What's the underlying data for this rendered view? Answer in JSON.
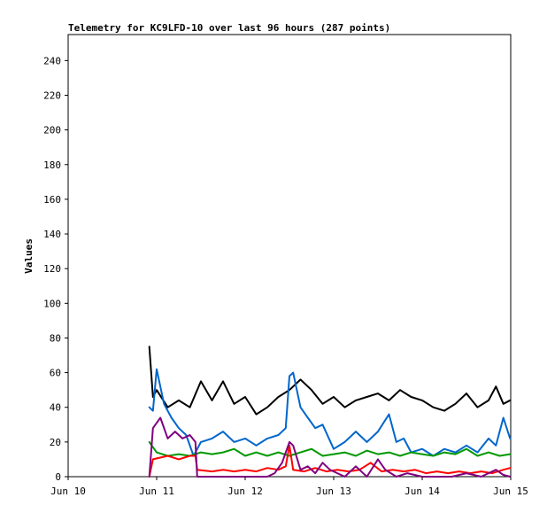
{
  "chart_data": {
    "type": "line",
    "title": "Telemetry for KC9LFD-10 over last 96 hours (287 points)",
    "xlabel": "",
    "ylabel": "Values",
    "ylim": [
      0,
      255
    ],
    "yticks": [
      0,
      20,
      40,
      60,
      80,
      100,
      120,
      140,
      160,
      180,
      200,
      220,
      240
    ],
    "x_range": [
      "2023-06-10T00:00",
      "2023-06-15T00:00"
    ],
    "xticks": [
      {
        "t": "2023-06-10T00:00",
        "label": "Jun 10"
      },
      {
        "t": "2023-06-11T00:00",
        "label": "Jun 11"
      },
      {
        "t": "2023-06-12T00:00",
        "label": "Jun 12"
      },
      {
        "t": "2023-06-13T00:00",
        "label": "Jun 13"
      },
      {
        "t": "2023-06-14T00:00",
        "label": "Jun 14"
      },
      {
        "t": "2023-06-15T00:00",
        "label": "Jun 15"
      }
    ],
    "grid": false,
    "legend": "none",
    "series": [
      {
        "color": "#000000",
        "points": [
          [
            "2023-06-10T22:00",
            75
          ],
          [
            "2023-06-10T23:00",
            46
          ],
          [
            "2023-06-11T00:00",
            50
          ],
          [
            "2023-06-11T03:00",
            40
          ],
          [
            "2023-06-11T06:00",
            44
          ],
          [
            "2023-06-11T09:00",
            40
          ],
          [
            "2023-06-11T12:00",
            55
          ],
          [
            "2023-06-11T15:00",
            44
          ],
          [
            "2023-06-11T18:00",
            55
          ],
          [
            "2023-06-11T21:00",
            42
          ],
          [
            "2023-06-12T00:00",
            46
          ],
          [
            "2023-06-12T03:00",
            36
          ],
          [
            "2023-06-12T06:00",
            40
          ],
          [
            "2023-06-12T09:00",
            46
          ],
          [
            "2023-06-12T12:00",
            50
          ],
          [
            "2023-06-12T15:00",
            56
          ],
          [
            "2023-06-12T18:00",
            50
          ],
          [
            "2023-06-12T21:00",
            42
          ],
          [
            "2023-06-13T00:00",
            46
          ],
          [
            "2023-06-13T03:00",
            40
          ],
          [
            "2023-06-13T06:00",
            44
          ],
          [
            "2023-06-13T09:00",
            46
          ],
          [
            "2023-06-13T12:00",
            48
          ],
          [
            "2023-06-13T15:00",
            44
          ],
          [
            "2023-06-13T18:00",
            50
          ],
          [
            "2023-06-13T21:00",
            46
          ],
          [
            "2023-06-14T00:00",
            44
          ],
          [
            "2023-06-14T03:00",
            40
          ],
          [
            "2023-06-14T06:00",
            38
          ],
          [
            "2023-06-14T09:00",
            42
          ],
          [
            "2023-06-14T12:00",
            48
          ],
          [
            "2023-06-14T15:00",
            40
          ],
          [
            "2023-06-14T18:00",
            44
          ],
          [
            "2023-06-14T20:00",
            52
          ],
          [
            "2023-06-14T22:00",
            42
          ],
          [
            "2023-06-14T23:50",
            44
          ]
        ]
      },
      {
        "color": "#0066cc",
        "points": [
          [
            "2023-06-10T22:00",
            40
          ],
          [
            "2023-06-10T23:00",
            38
          ],
          [
            "2023-06-11T00:00",
            62
          ],
          [
            "2023-06-11T02:00",
            42
          ],
          [
            "2023-06-11T04:00",
            34
          ],
          [
            "2023-06-11T06:00",
            28
          ],
          [
            "2023-06-11T08:00",
            24
          ],
          [
            "2023-06-11T10:00",
            12
          ],
          [
            "2023-06-11T12:00",
            20
          ],
          [
            "2023-06-11T15:00",
            22
          ],
          [
            "2023-06-11T18:00",
            26
          ],
          [
            "2023-06-11T21:00",
            20
          ],
          [
            "2023-06-12T00:00",
            22
          ],
          [
            "2023-06-12T03:00",
            18
          ],
          [
            "2023-06-12T06:00",
            22
          ],
          [
            "2023-06-12T09:00",
            24
          ],
          [
            "2023-06-12T11:00",
            28
          ],
          [
            "2023-06-12T12:00",
            58
          ],
          [
            "2023-06-12T13:00",
            60
          ],
          [
            "2023-06-12T15:00",
            40
          ],
          [
            "2023-06-12T17:00",
            34
          ],
          [
            "2023-06-12T19:00",
            28
          ],
          [
            "2023-06-12T21:00",
            30
          ],
          [
            "2023-06-13T00:00",
            16
          ],
          [
            "2023-06-13T03:00",
            20
          ],
          [
            "2023-06-13T06:00",
            26
          ],
          [
            "2023-06-13T09:00",
            20
          ],
          [
            "2023-06-13T12:00",
            26
          ],
          [
            "2023-06-13T15:00",
            36
          ],
          [
            "2023-06-13T17:00",
            20
          ],
          [
            "2023-06-13T19:00",
            22
          ],
          [
            "2023-06-13T21:00",
            14
          ],
          [
            "2023-06-14T00:00",
            16
          ],
          [
            "2023-06-14T03:00",
            12
          ],
          [
            "2023-06-14T06:00",
            16
          ],
          [
            "2023-06-14T09:00",
            14
          ],
          [
            "2023-06-14T12:00",
            18
          ],
          [
            "2023-06-14T15:00",
            14
          ],
          [
            "2023-06-14T18:00",
            22
          ],
          [
            "2023-06-14T20:00",
            18
          ],
          [
            "2023-06-14T22:00",
            34
          ],
          [
            "2023-06-14T23:50",
            22
          ]
        ]
      },
      {
        "color": "#009900",
        "points": [
          [
            "2023-06-10T22:00",
            20
          ],
          [
            "2023-06-11T00:00",
            14
          ],
          [
            "2023-06-11T03:00",
            12
          ],
          [
            "2023-06-11T06:00",
            13
          ],
          [
            "2023-06-11T09:00",
            12
          ],
          [
            "2023-06-11T12:00",
            14
          ],
          [
            "2023-06-11T15:00",
            13
          ],
          [
            "2023-06-11T18:00",
            14
          ],
          [
            "2023-06-11T21:00",
            16
          ],
          [
            "2023-06-12T00:00",
            12
          ],
          [
            "2023-06-12T03:00",
            14
          ],
          [
            "2023-06-12T06:00",
            12
          ],
          [
            "2023-06-12T09:00",
            14
          ],
          [
            "2023-06-12T12:00",
            12
          ],
          [
            "2023-06-12T15:00",
            14
          ],
          [
            "2023-06-12T18:00",
            16
          ],
          [
            "2023-06-12T21:00",
            12
          ],
          [
            "2023-06-13T00:00",
            13
          ],
          [
            "2023-06-13T03:00",
            14
          ],
          [
            "2023-06-13T06:00",
            12
          ],
          [
            "2023-06-13T09:00",
            15
          ],
          [
            "2023-06-13T12:00",
            13
          ],
          [
            "2023-06-13T15:00",
            14
          ],
          [
            "2023-06-13T18:00",
            12
          ],
          [
            "2023-06-13T21:00",
            14
          ],
          [
            "2023-06-14T00:00",
            13
          ],
          [
            "2023-06-14T03:00",
            12
          ],
          [
            "2023-06-14T06:00",
            14
          ],
          [
            "2023-06-14T09:00",
            13
          ],
          [
            "2023-06-14T12:00",
            16
          ],
          [
            "2023-06-14T15:00",
            12
          ],
          [
            "2023-06-14T18:00",
            14
          ],
          [
            "2023-06-14T21:00",
            12
          ],
          [
            "2023-06-14T23:50",
            13
          ]
        ]
      },
      {
        "color": "#ff0000",
        "points": [
          [
            "2023-06-10T22:00",
            0
          ],
          [
            "2023-06-10T23:00",
            10
          ],
          [
            "2023-06-11T03:00",
            12
          ],
          [
            "2023-06-11T06:00",
            10
          ],
          [
            "2023-06-11T09:00",
            12
          ],
          [
            "2023-06-11T10:30",
            12
          ],
          [
            "2023-06-11T11:00",
            4
          ],
          [
            "2023-06-11T15:00",
            3
          ],
          [
            "2023-06-11T18:00",
            4
          ],
          [
            "2023-06-11T21:00",
            3
          ],
          [
            "2023-06-12T00:00",
            4
          ],
          [
            "2023-06-12T03:00",
            3
          ],
          [
            "2023-06-12T06:00",
            5
          ],
          [
            "2023-06-12T09:00",
            4
          ],
          [
            "2023-06-12T11:00",
            6
          ],
          [
            "2023-06-12T12:00",
            18
          ],
          [
            "2023-06-12T13:00",
            4
          ],
          [
            "2023-06-12T16:00",
            3
          ],
          [
            "2023-06-12T19:00",
            5
          ],
          [
            "2023-06-12T22:00",
            3
          ],
          [
            "2023-06-13T01:00",
            4
          ],
          [
            "2023-06-13T04:00",
            3
          ],
          [
            "2023-06-13T07:00",
            4
          ],
          [
            "2023-06-13T10:00",
            8
          ],
          [
            "2023-06-13T13:00",
            3
          ],
          [
            "2023-06-13T16:00",
            4
          ],
          [
            "2023-06-13T19:00",
            3
          ],
          [
            "2023-06-13T22:00",
            4
          ],
          [
            "2023-06-14T01:00",
            2
          ],
          [
            "2023-06-14T04:00",
            3
          ],
          [
            "2023-06-14T07:00",
            2
          ],
          [
            "2023-06-14T10:00",
            3
          ],
          [
            "2023-06-14T13:00",
            2
          ],
          [
            "2023-06-14T16:00",
            3
          ],
          [
            "2023-06-14T19:00",
            2
          ],
          [
            "2023-06-14T22:00",
            4
          ],
          [
            "2023-06-14T23:50",
            5
          ]
        ]
      },
      {
        "color": "#800080",
        "points": [
          [
            "2023-06-10T22:00",
            0
          ],
          [
            "2023-06-10T23:00",
            28
          ],
          [
            "2023-06-11T01:00",
            34
          ],
          [
            "2023-06-11T03:00",
            22
          ],
          [
            "2023-06-11T05:00",
            26
          ],
          [
            "2023-06-11T07:00",
            22
          ],
          [
            "2023-06-11T09:00",
            24
          ],
          [
            "2023-06-11T10:30",
            20
          ],
          [
            "2023-06-11T11:00",
            0
          ],
          [
            "2023-06-11T14:00",
            0
          ],
          [
            "2023-06-11T18:00",
            0
          ],
          [
            "2023-06-11T22:00",
            0
          ],
          [
            "2023-06-12T02:00",
            0
          ],
          [
            "2023-06-12T06:00",
            0
          ],
          [
            "2023-06-12T08:00",
            2
          ],
          [
            "2023-06-12T10:00",
            8
          ],
          [
            "2023-06-12T12:00",
            20
          ],
          [
            "2023-06-12T13:00",
            18
          ],
          [
            "2023-06-12T15:00",
            4
          ],
          [
            "2023-06-12T17:00",
            6
          ],
          [
            "2023-06-12T19:00",
            2
          ],
          [
            "2023-06-12T21:00",
            8
          ],
          [
            "2023-06-12T23:00",
            4
          ],
          [
            "2023-06-13T01:00",
            2
          ],
          [
            "2023-06-13T03:00",
            0
          ],
          [
            "2023-06-13T06:00",
            6
          ],
          [
            "2023-06-13T09:00",
            0
          ],
          [
            "2023-06-13T12:00",
            10
          ],
          [
            "2023-06-13T14:00",
            4
          ],
          [
            "2023-06-13T17:00",
            0
          ],
          [
            "2023-06-13T20:00",
            2
          ],
          [
            "2023-06-14T00:00",
            0
          ],
          [
            "2023-06-14T04:00",
            0
          ],
          [
            "2023-06-14T08:00",
            0
          ],
          [
            "2023-06-14T12:00",
            2
          ],
          [
            "2023-06-14T16:00",
            0
          ],
          [
            "2023-06-14T20:00",
            4
          ],
          [
            "2023-06-14T22:00",
            1
          ],
          [
            "2023-06-14T23:50",
            0
          ]
        ]
      }
    ]
  }
}
